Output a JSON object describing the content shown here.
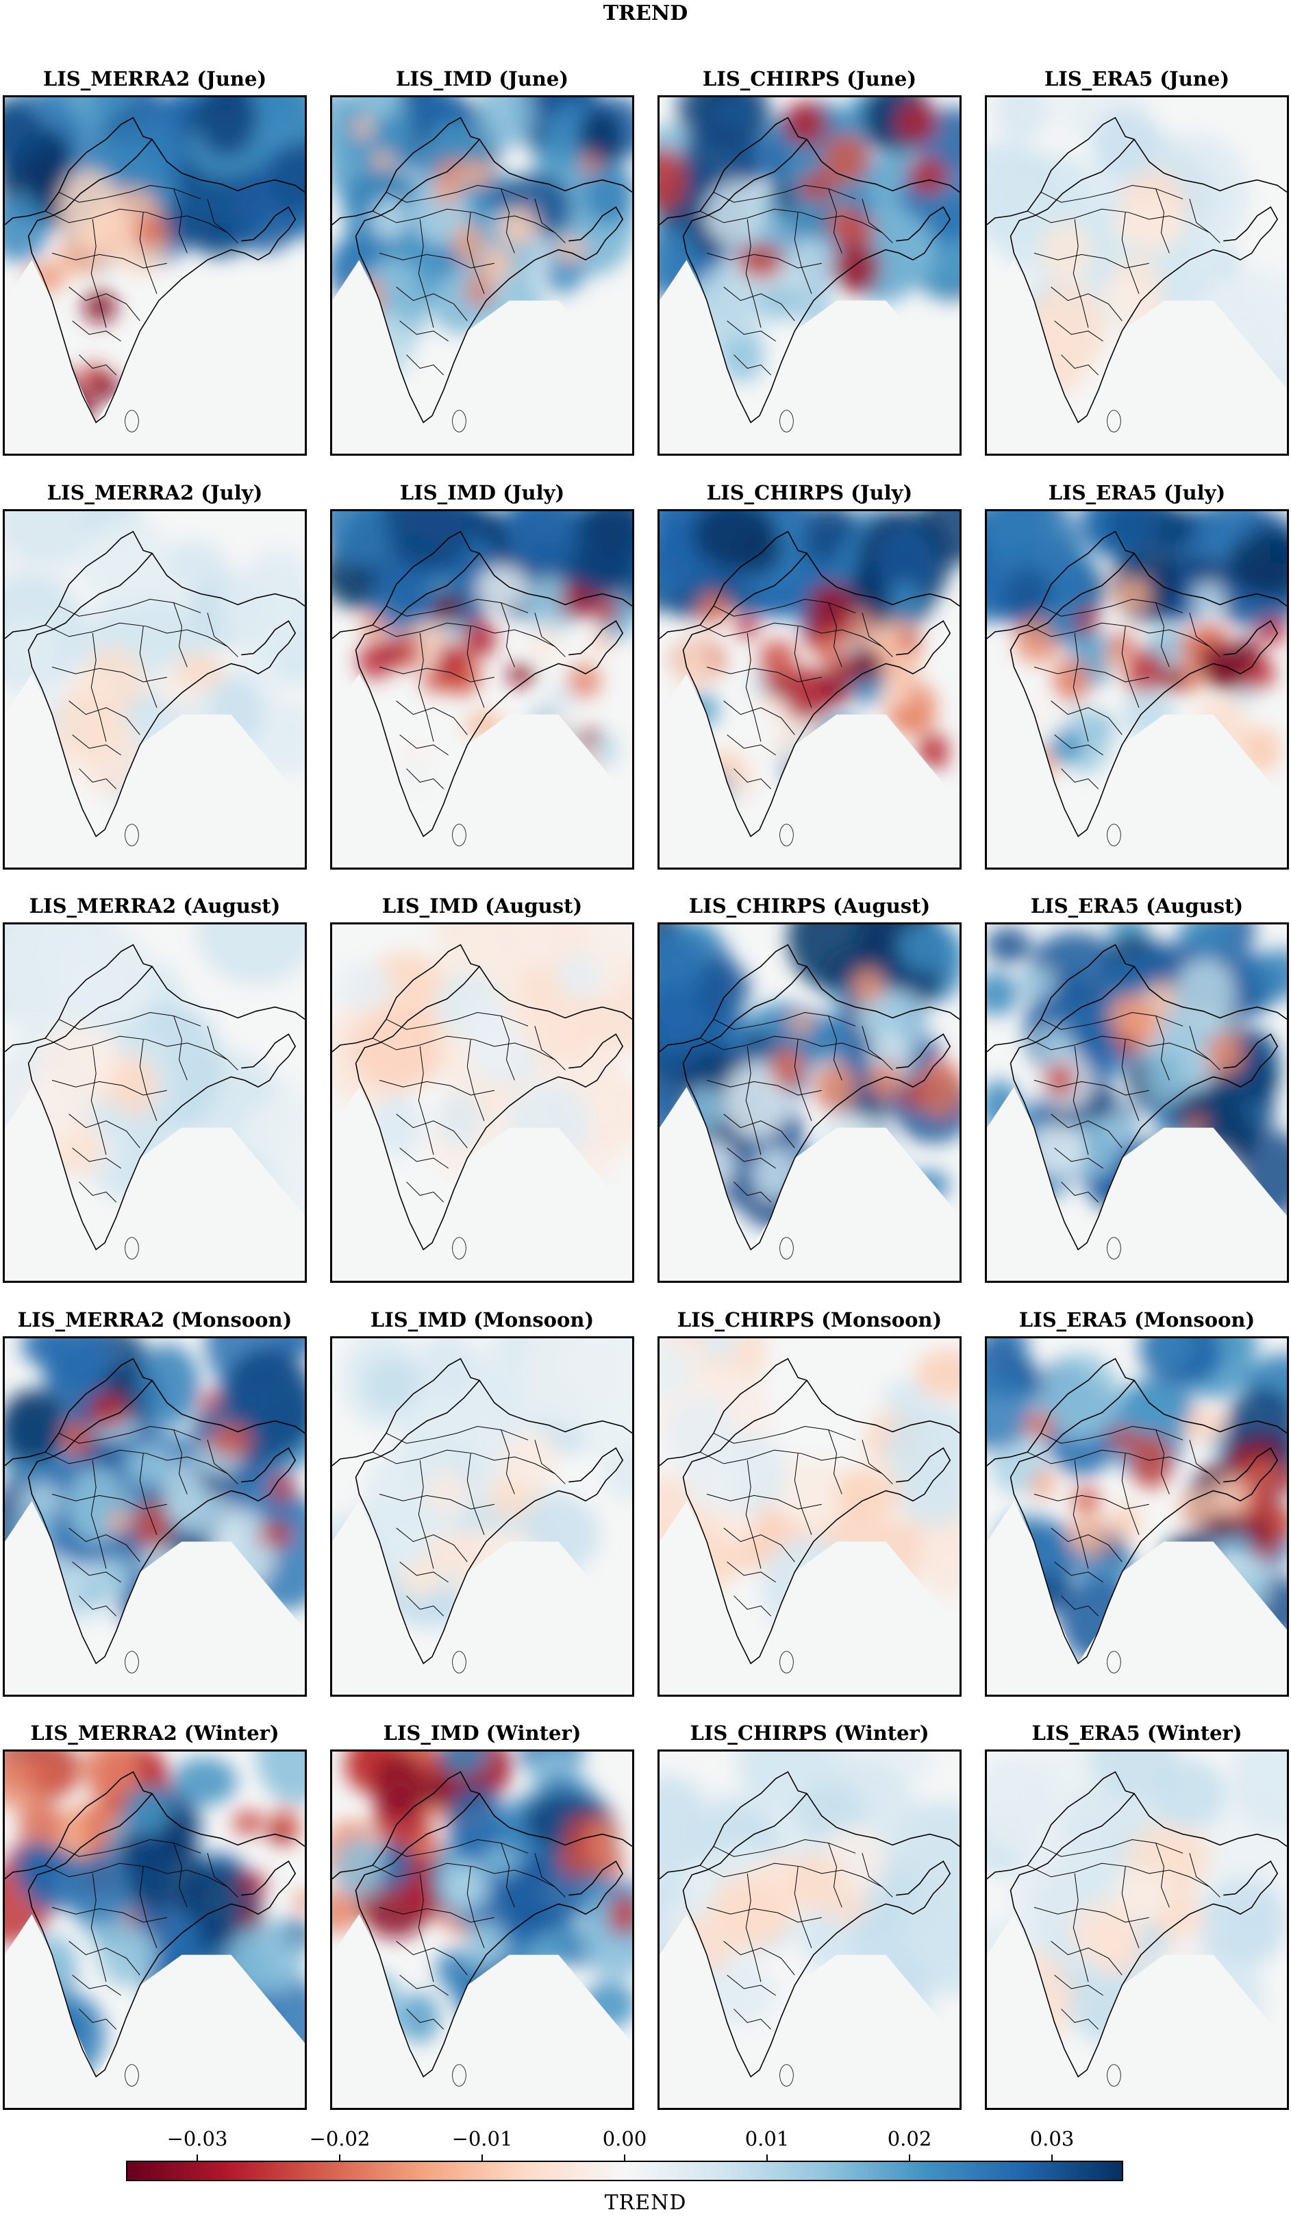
{
  "figure": {
    "title": "TREND",
    "colorbar": {
      "label": "TREND",
      "colormap": "RdBu",
      "range": [
        -0.035,
        0.035
      ],
      "ticks": [
        {
          "value": -0.03,
          "label": "−0.03"
        },
        {
          "value": -0.02,
          "label": "−0.02"
        },
        {
          "value": -0.01,
          "label": "−0.01"
        },
        {
          "value": 0.0,
          "label": "0.00"
        },
        {
          "value": 0.01,
          "label": "0.01"
        },
        {
          "value": 0.02,
          "label": "0.02"
        },
        {
          "value": 0.03,
          "label": "0.03"
        }
      ],
      "colors": [
        "#67001f",
        "#b2182b",
        "#d6604d",
        "#f4a582",
        "#fddbc7",
        "#f7f7f7",
        "#d1e5f0",
        "#92c5de",
        "#4393c3",
        "#2166ac",
        "#053061"
      ]
    },
    "panels": [
      {
        "title": "LIS_MERRA2 (June)",
        "pattern": "strong-blue-north-red-south"
      },
      {
        "title": "LIS_IMD (June)",
        "pattern": "blue-mixed"
      },
      {
        "title": "LIS_CHIRPS (June)",
        "pattern": "blue-mixed-red-patches"
      },
      {
        "title": "LIS_ERA5 (June)",
        "pattern": "weak"
      },
      {
        "title": "LIS_MERRA2 (July)",
        "pattern": "weak"
      },
      {
        "title": "LIS_IMD (July)",
        "pattern": "blue-north-red-center"
      },
      {
        "title": "LIS_CHIRPS (July)",
        "pattern": "blue-north-red-center"
      },
      {
        "title": "LIS_ERA5 (July)",
        "pattern": "blue-north-red-center"
      },
      {
        "title": "LIS_MERRA2 (August)",
        "pattern": "weak"
      },
      {
        "title": "LIS_IMD (August)",
        "pattern": "weak-red"
      },
      {
        "title": "LIS_CHIRPS (August)",
        "pattern": "strong-blue"
      },
      {
        "title": "LIS_ERA5 (August)",
        "pattern": "strong-blue"
      },
      {
        "title": "LIS_MERRA2 (Monsoon)",
        "pattern": "strong-blue"
      },
      {
        "title": "LIS_IMD (Monsoon)",
        "pattern": "weak"
      },
      {
        "title": "LIS_CHIRPS (Monsoon)",
        "pattern": "weak-red"
      },
      {
        "title": "LIS_ERA5 (Monsoon)",
        "pattern": "blue-red-east"
      },
      {
        "title": "LIS_MERRA2 (Winter)",
        "pattern": "red-west-blue-east"
      },
      {
        "title": "LIS_IMD (Winter)",
        "pattern": "red-west-blue-east"
      },
      {
        "title": "LIS_CHIRPS (Winter)",
        "pattern": "weak"
      },
      {
        "title": "LIS_ERA5 (Winter)",
        "pattern": "weak"
      }
    ]
  }
}
